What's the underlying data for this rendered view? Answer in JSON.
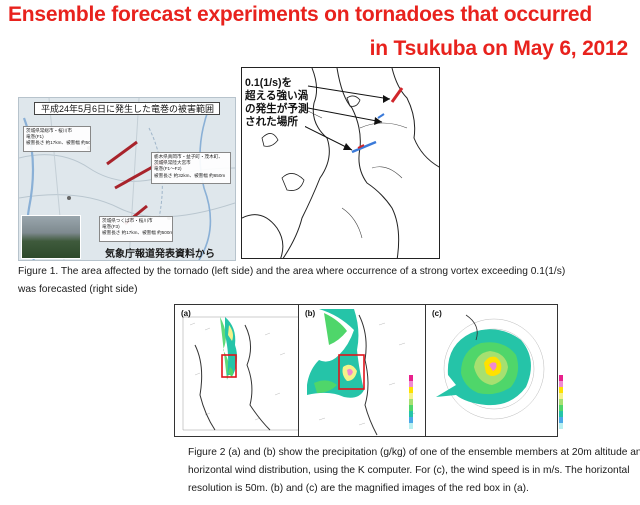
{
  "title": {
    "line1": "Ensemble forecast experiments on tornadoes that occurred",
    "line2": "in Tsukuba on May 6, 2012"
  },
  "figure1": {
    "left": {
      "heading": "平成24年5月6日に発生した竜巻の被害範囲（関東）",
      "callouts": [
        "茨城県常総市・桜川市\n竜巻(F1)\n被害長さ 約17km、被害幅 約500m",
        "栃木県真岡市・益子町・茂木町、\n茨城県常陸大宮市\n竜巻(F1〜F2)\n被害長さ 約32km、被害幅 約650m",
        "茨城県つくば市・桜川市\n竜巻(F3)\n被害長さ 約17km、被害幅 約500m"
      ],
      "source": "気象庁報道発表資料から"
    },
    "right": {
      "label_lines": [
        "0.1(1/s)を",
        "超える強い渦",
        "の発生が予測",
        "された場所"
      ]
    },
    "caption_lines": [
      "Figure 1. The area affected by the tornado (left side) and the area where occurrence of a strong vortex exceeding 0.1(1/s)",
      "was forecasted (right side)"
    ]
  },
  "figure2": {
    "panels": [
      {
        "label": "(a)"
      },
      {
        "label": "(b)"
      },
      {
        "label": "(c)"
      }
    ],
    "colorbar_colors": [
      "#e8208c",
      "#f08ad0",
      "#ffe100",
      "#f5f28a",
      "#a6e070",
      "#4fd66a",
      "#25c4a8",
      "#4aa8e8",
      "#b8f0f0"
    ],
    "caption_lines": [
      "Figure 2 (a) and (b) show the precipitation (g/kg) of one of the ensemble members at 20m altitude and the",
      "horizontal wind distribution, using the K computer. For (c), the wind speed is in m/s. The horizontal",
      "resolution is 50m. (b) and (c) are the magnified images of the red box in (a)."
    ]
  }
}
